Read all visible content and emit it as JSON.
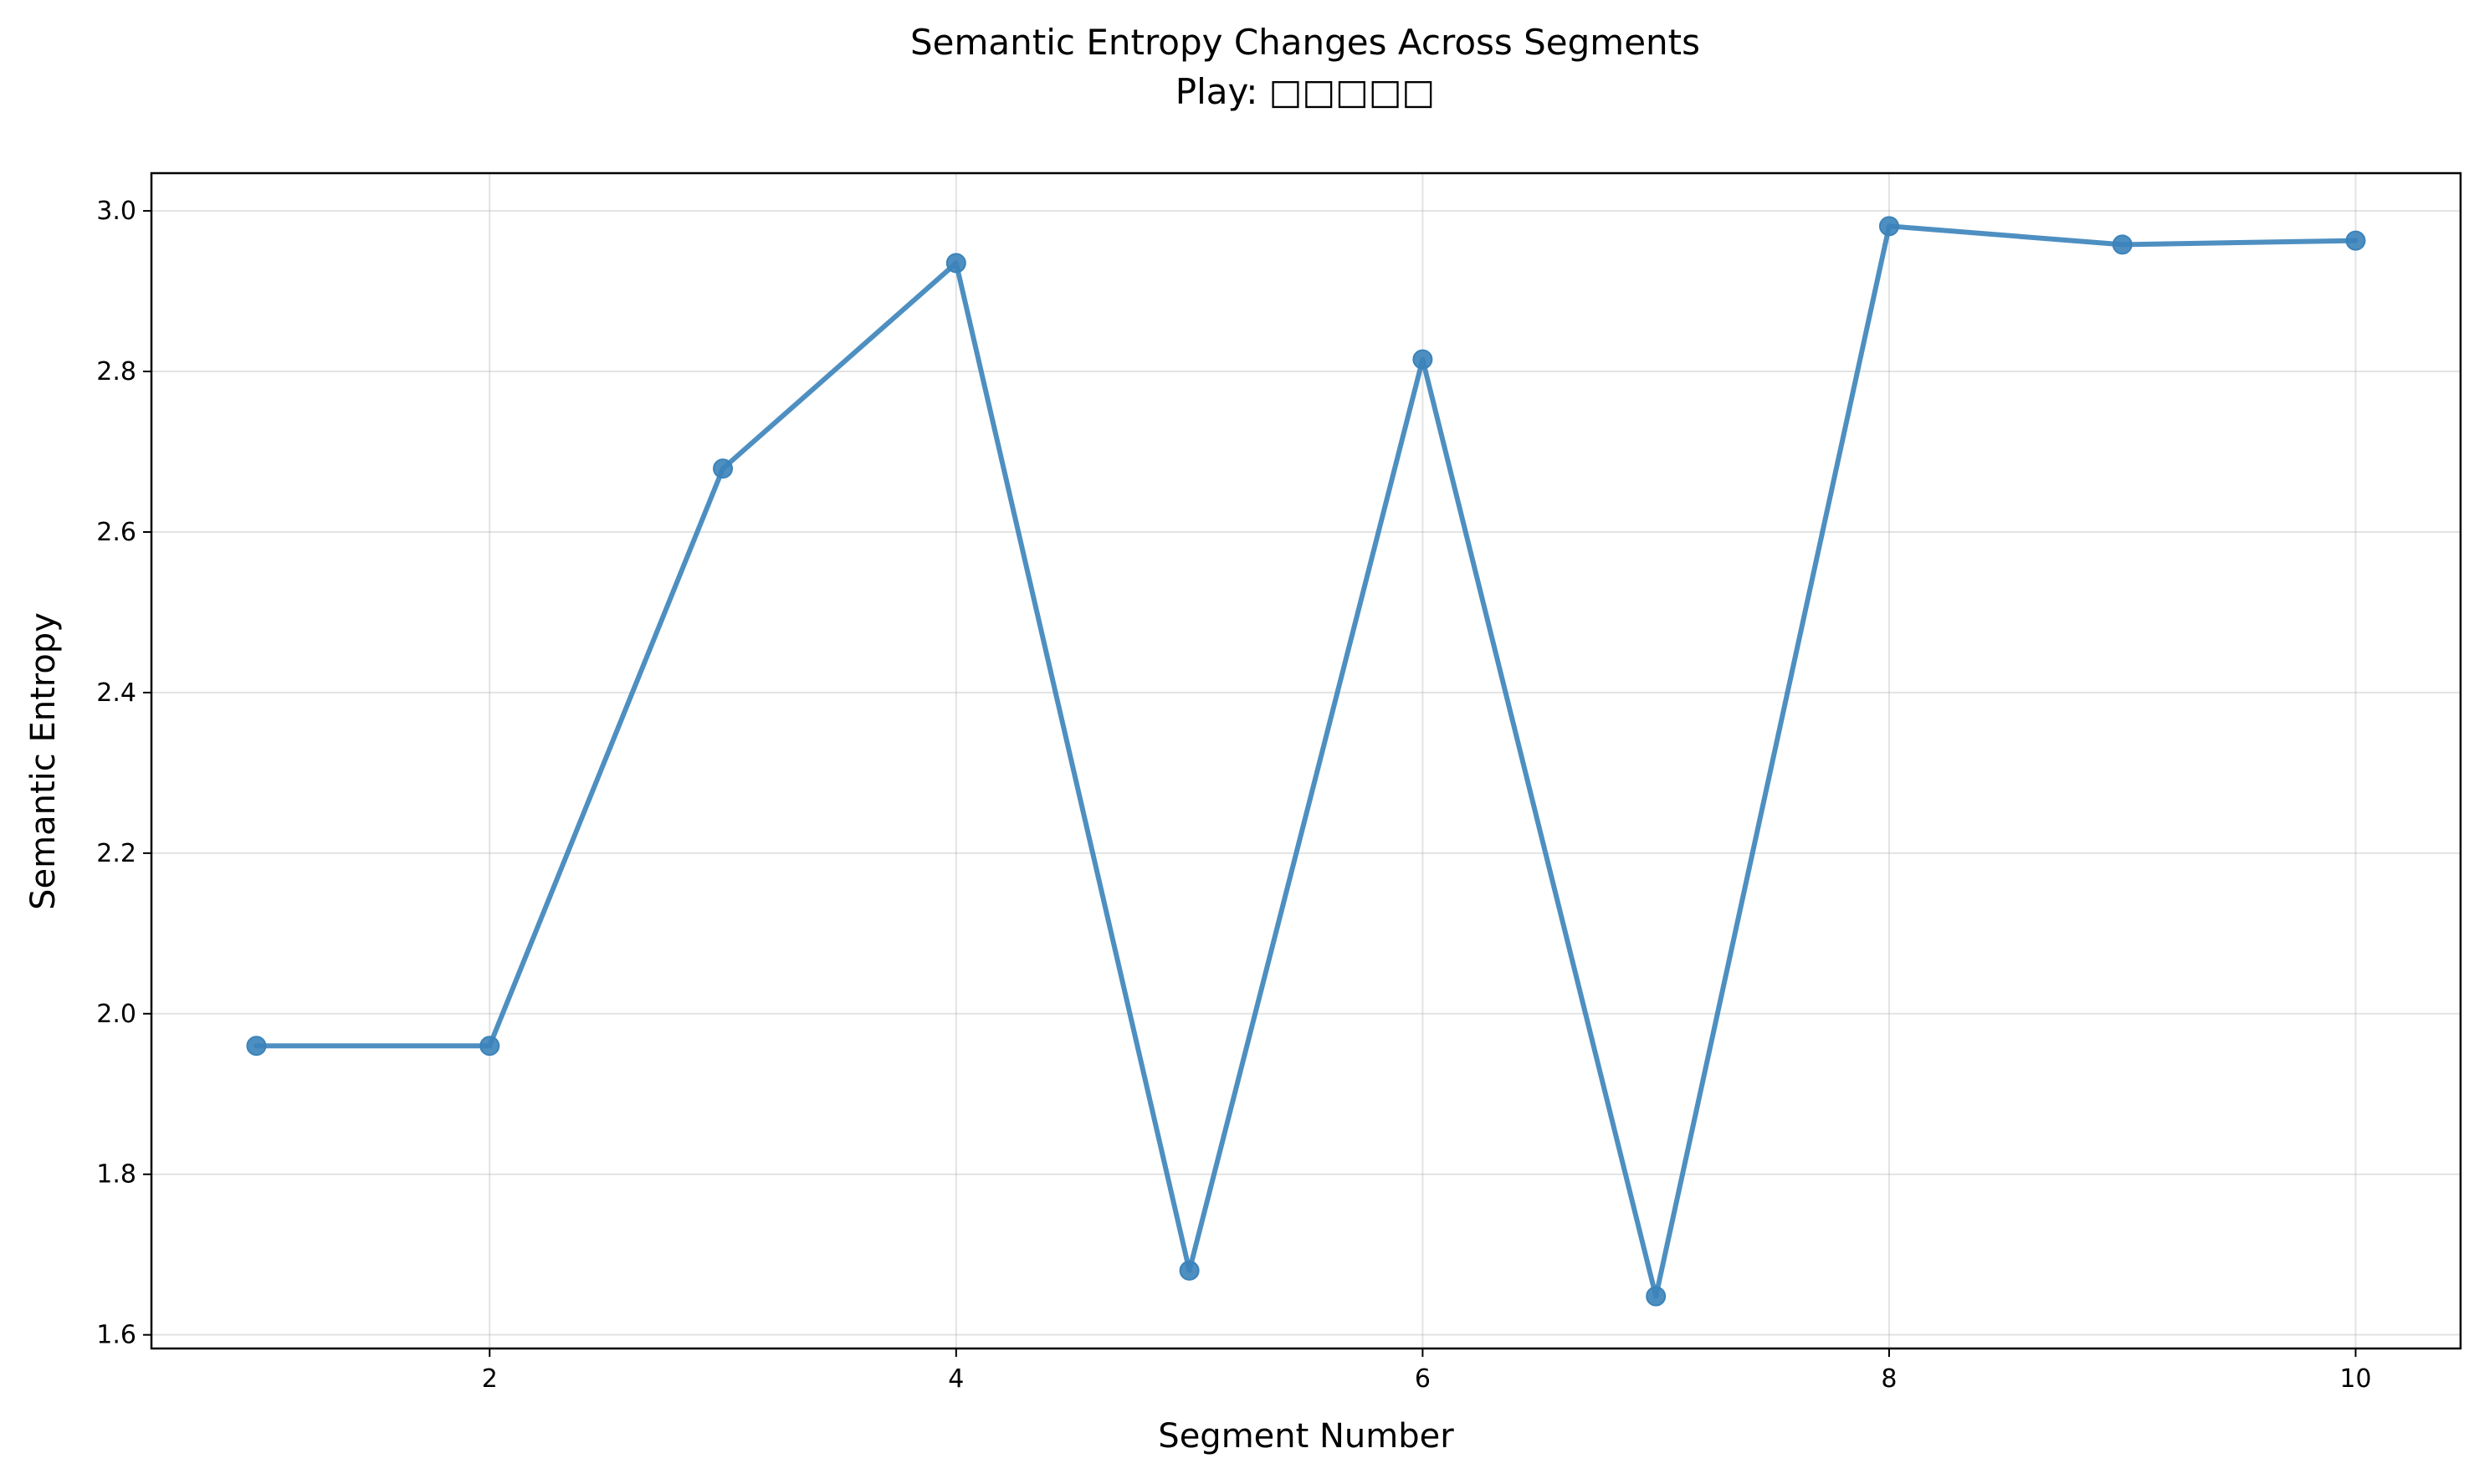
{
  "chart_data": {
    "type": "line",
    "title": "Semantic Entropy Changes Across Segments",
    "subtitle": "Play: □□□□□",
    "xlabel": "Segment Number",
    "ylabel": "Semantic Entropy",
    "xlim": [
      0.55,
      10.45
    ],
    "ylim": [
      1.583,
      3.047
    ],
    "xticks": [
      2,
      4,
      6,
      8,
      10
    ],
    "xtick_labels": [
      "2",
      "4",
      "6",
      "8",
      "10"
    ],
    "yticks": [
      1.6,
      1.8,
      2.0,
      2.2,
      2.4,
      2.6,
      2.8,
      3.0
    ],
    "ytick_labels": [
      "1.6",
      "1.8",
      "2.0",
      "2.2",
      "2.4",
      "2.6",
      "2.8",
      "3.0"
    ],
    "grid": true,
    "legend": false,
    "series": [
      {
        "color": "#3b83ba",
        "marker": "circle",
        "x": [
          1,
          2,
          3,
          4,
          5,
          6,
          7,
          8,
          9,
          10
        ],
        "values": [
          1.96,
          1.96,
          2.679,
          2.935,
          1.68,
          2.815,
          1.648,
          2.981,
          2.958,
          2.963
        ]
      }
    ]
  }
}
